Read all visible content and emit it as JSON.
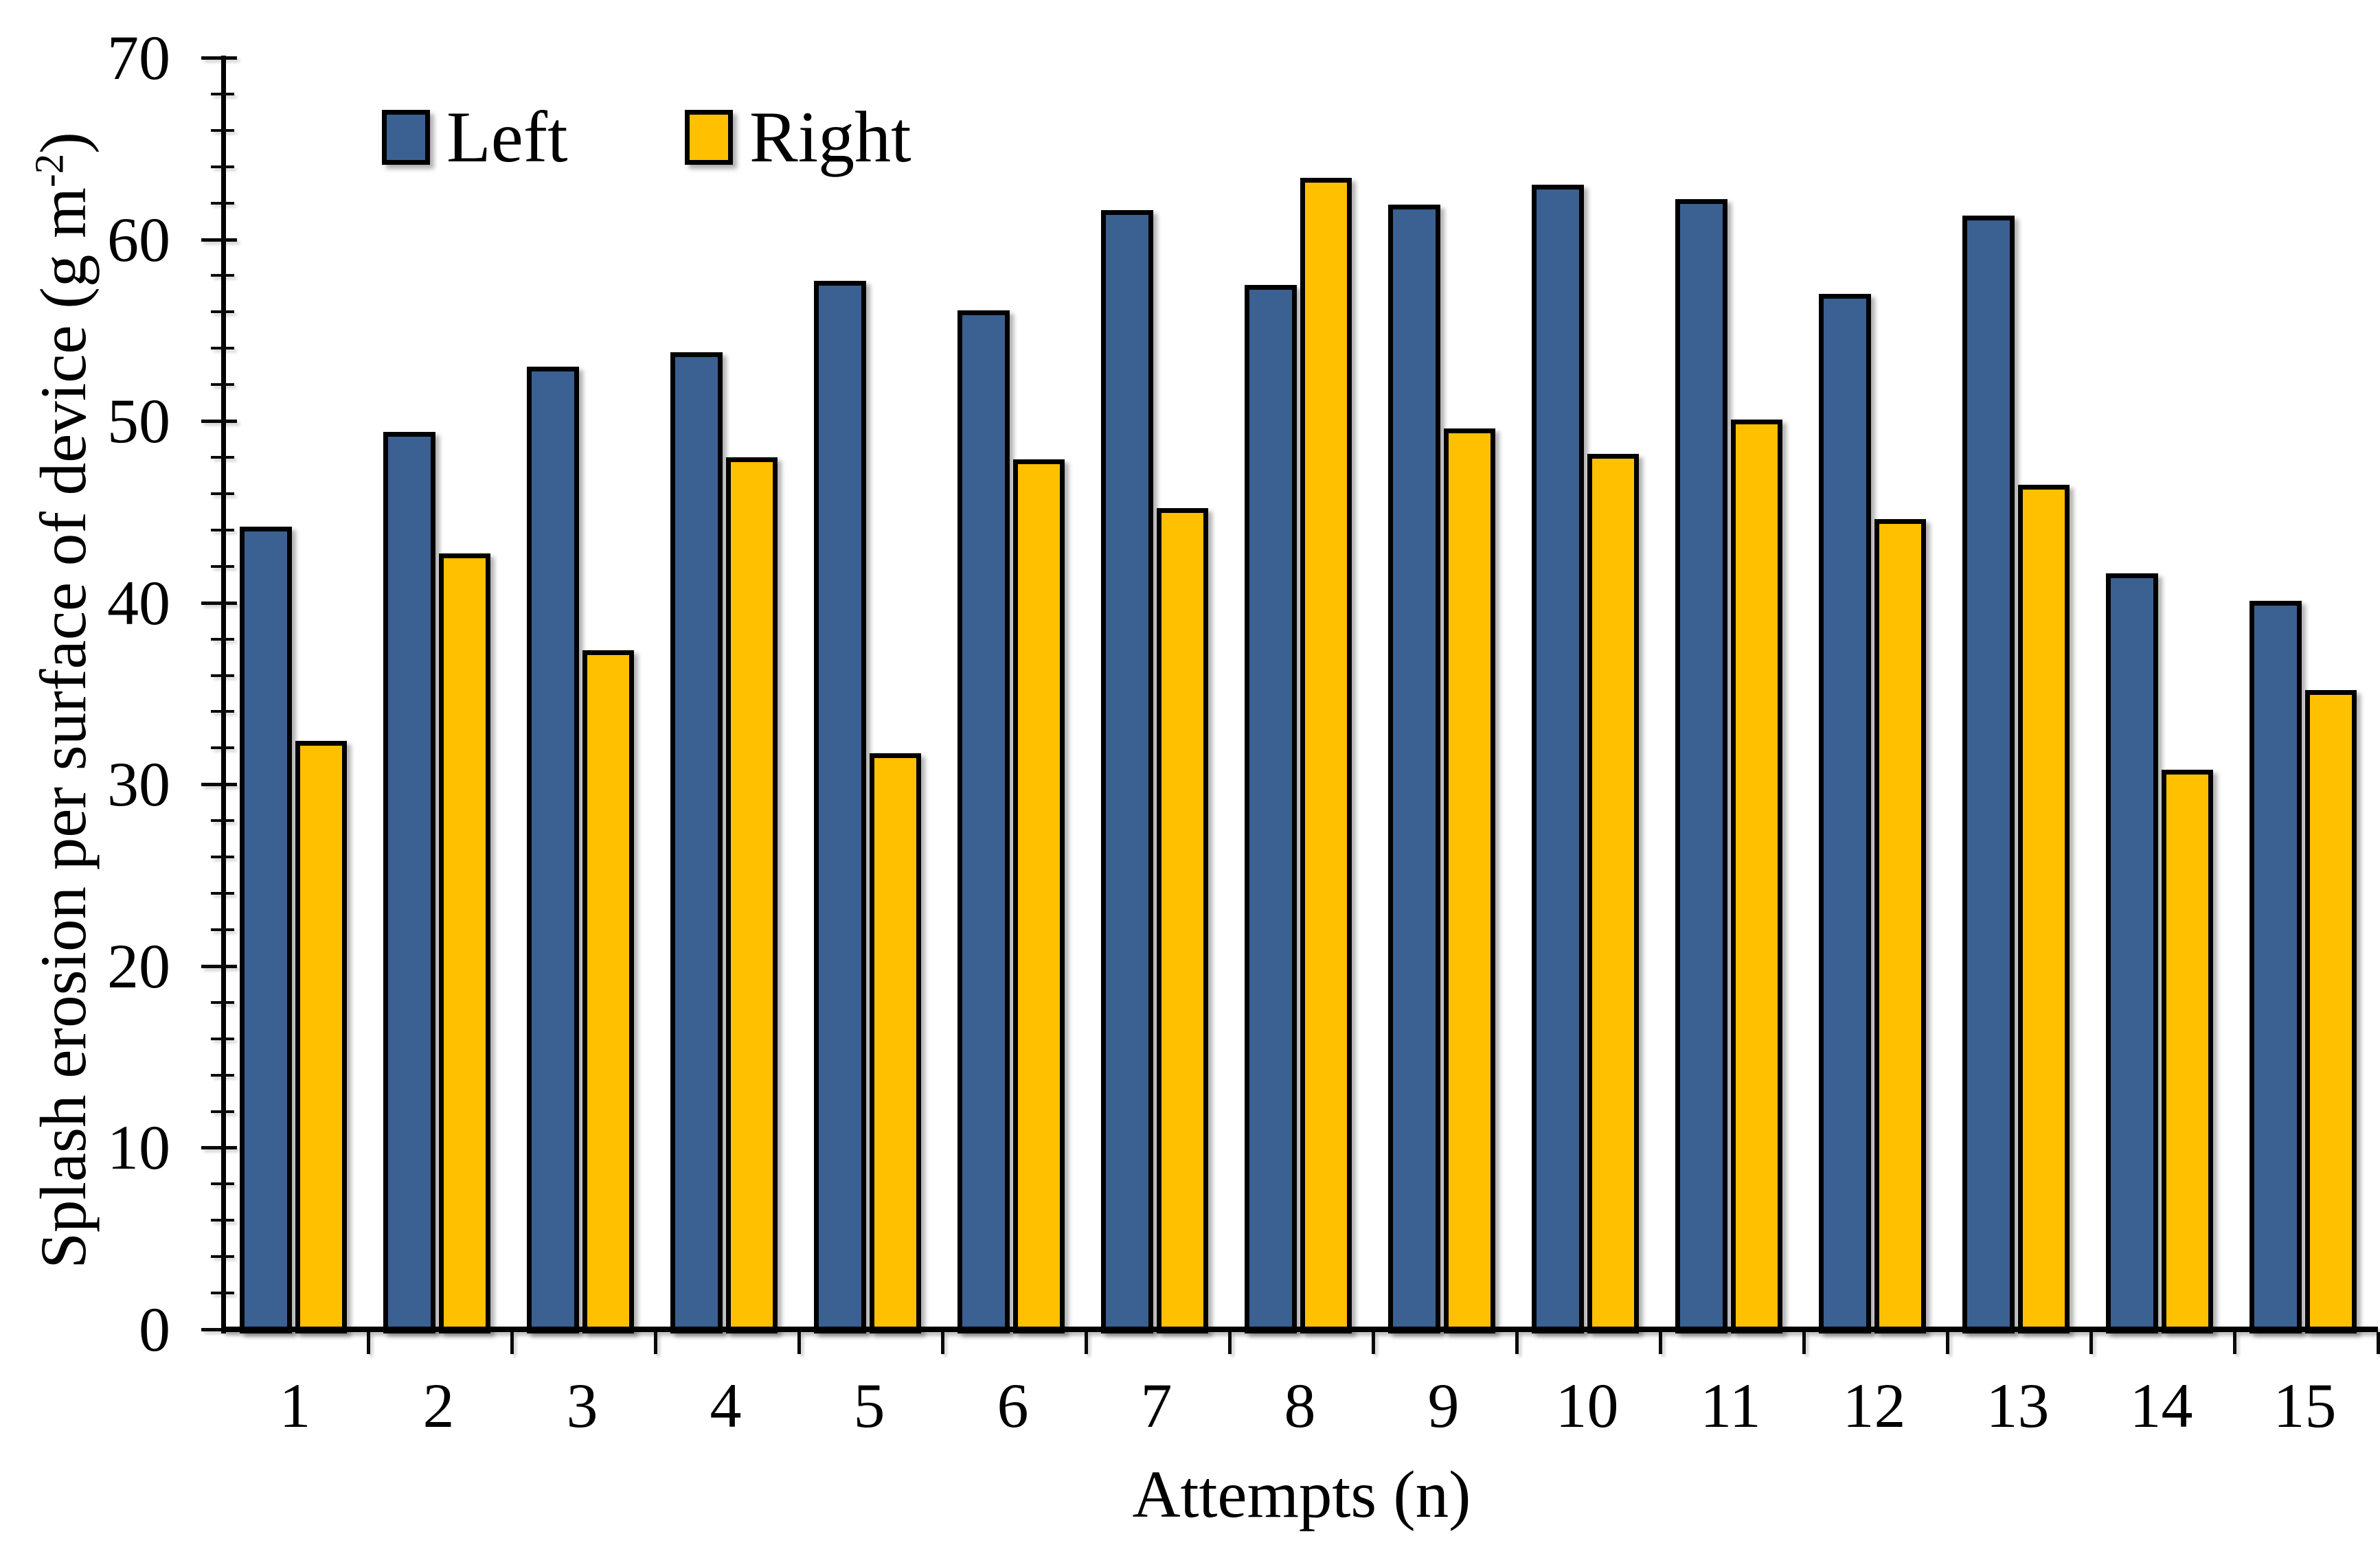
{
  "chart_data": {
    "type": "bar",
    "title": "",
    "categories": [
      "1",
      "2",
      "3",
      "4",
      "5",
      "6",
      "7",
      "8",
      "9",
      "10",
      "11",
      "12",
      "13",
      "14",
      "15"
    ],
    "series": [
      {
        "name": "Left",
        "color": "#3A6191",
        "values": [
          44.2,
          49.4,
          53.0,
          53.8,
          57.7,
          56.1,
          61.6,
          57.5,
          61.9,
          63.0,
          62.2,
          57.0,
          61.3,
          41.6,
          40.1
        ]
      },
      {
        "name": "Right",
        "color": "#FFC000",
        "values": [
          32.4,
          42.7,
          37.4,
          48.0,
          31.7,
          47.9,
          45.2,
          63.4,
          49.6,
          48.2,
          50.1,
          44.6,
          46.5,
          30.8,
          35.2
        ]
      }
    ],
    "xlabel": "Attempts (n)",
    "ylabel": "Splash erosion per surface of device (g m⁻²)",
    "ylabel_parts": {
      "pre": "Splash erosion per surface of device (g m",
      "sup": "-2",
      "post": ")"
    },
    "ylim": [
      0,
      70
    ],
    "y_ticks": [
      0,
      10,
      20,
      30,
      40,
      50,
      60,
      70
    ],
    "y_minor_step": 2,
    "bar_border_color": "#000000",
    "axis_color": "#000000",
    "background_color": "#FFFFFF",
    "legend_position": "top-inside",
    "grid": false
  }
}
